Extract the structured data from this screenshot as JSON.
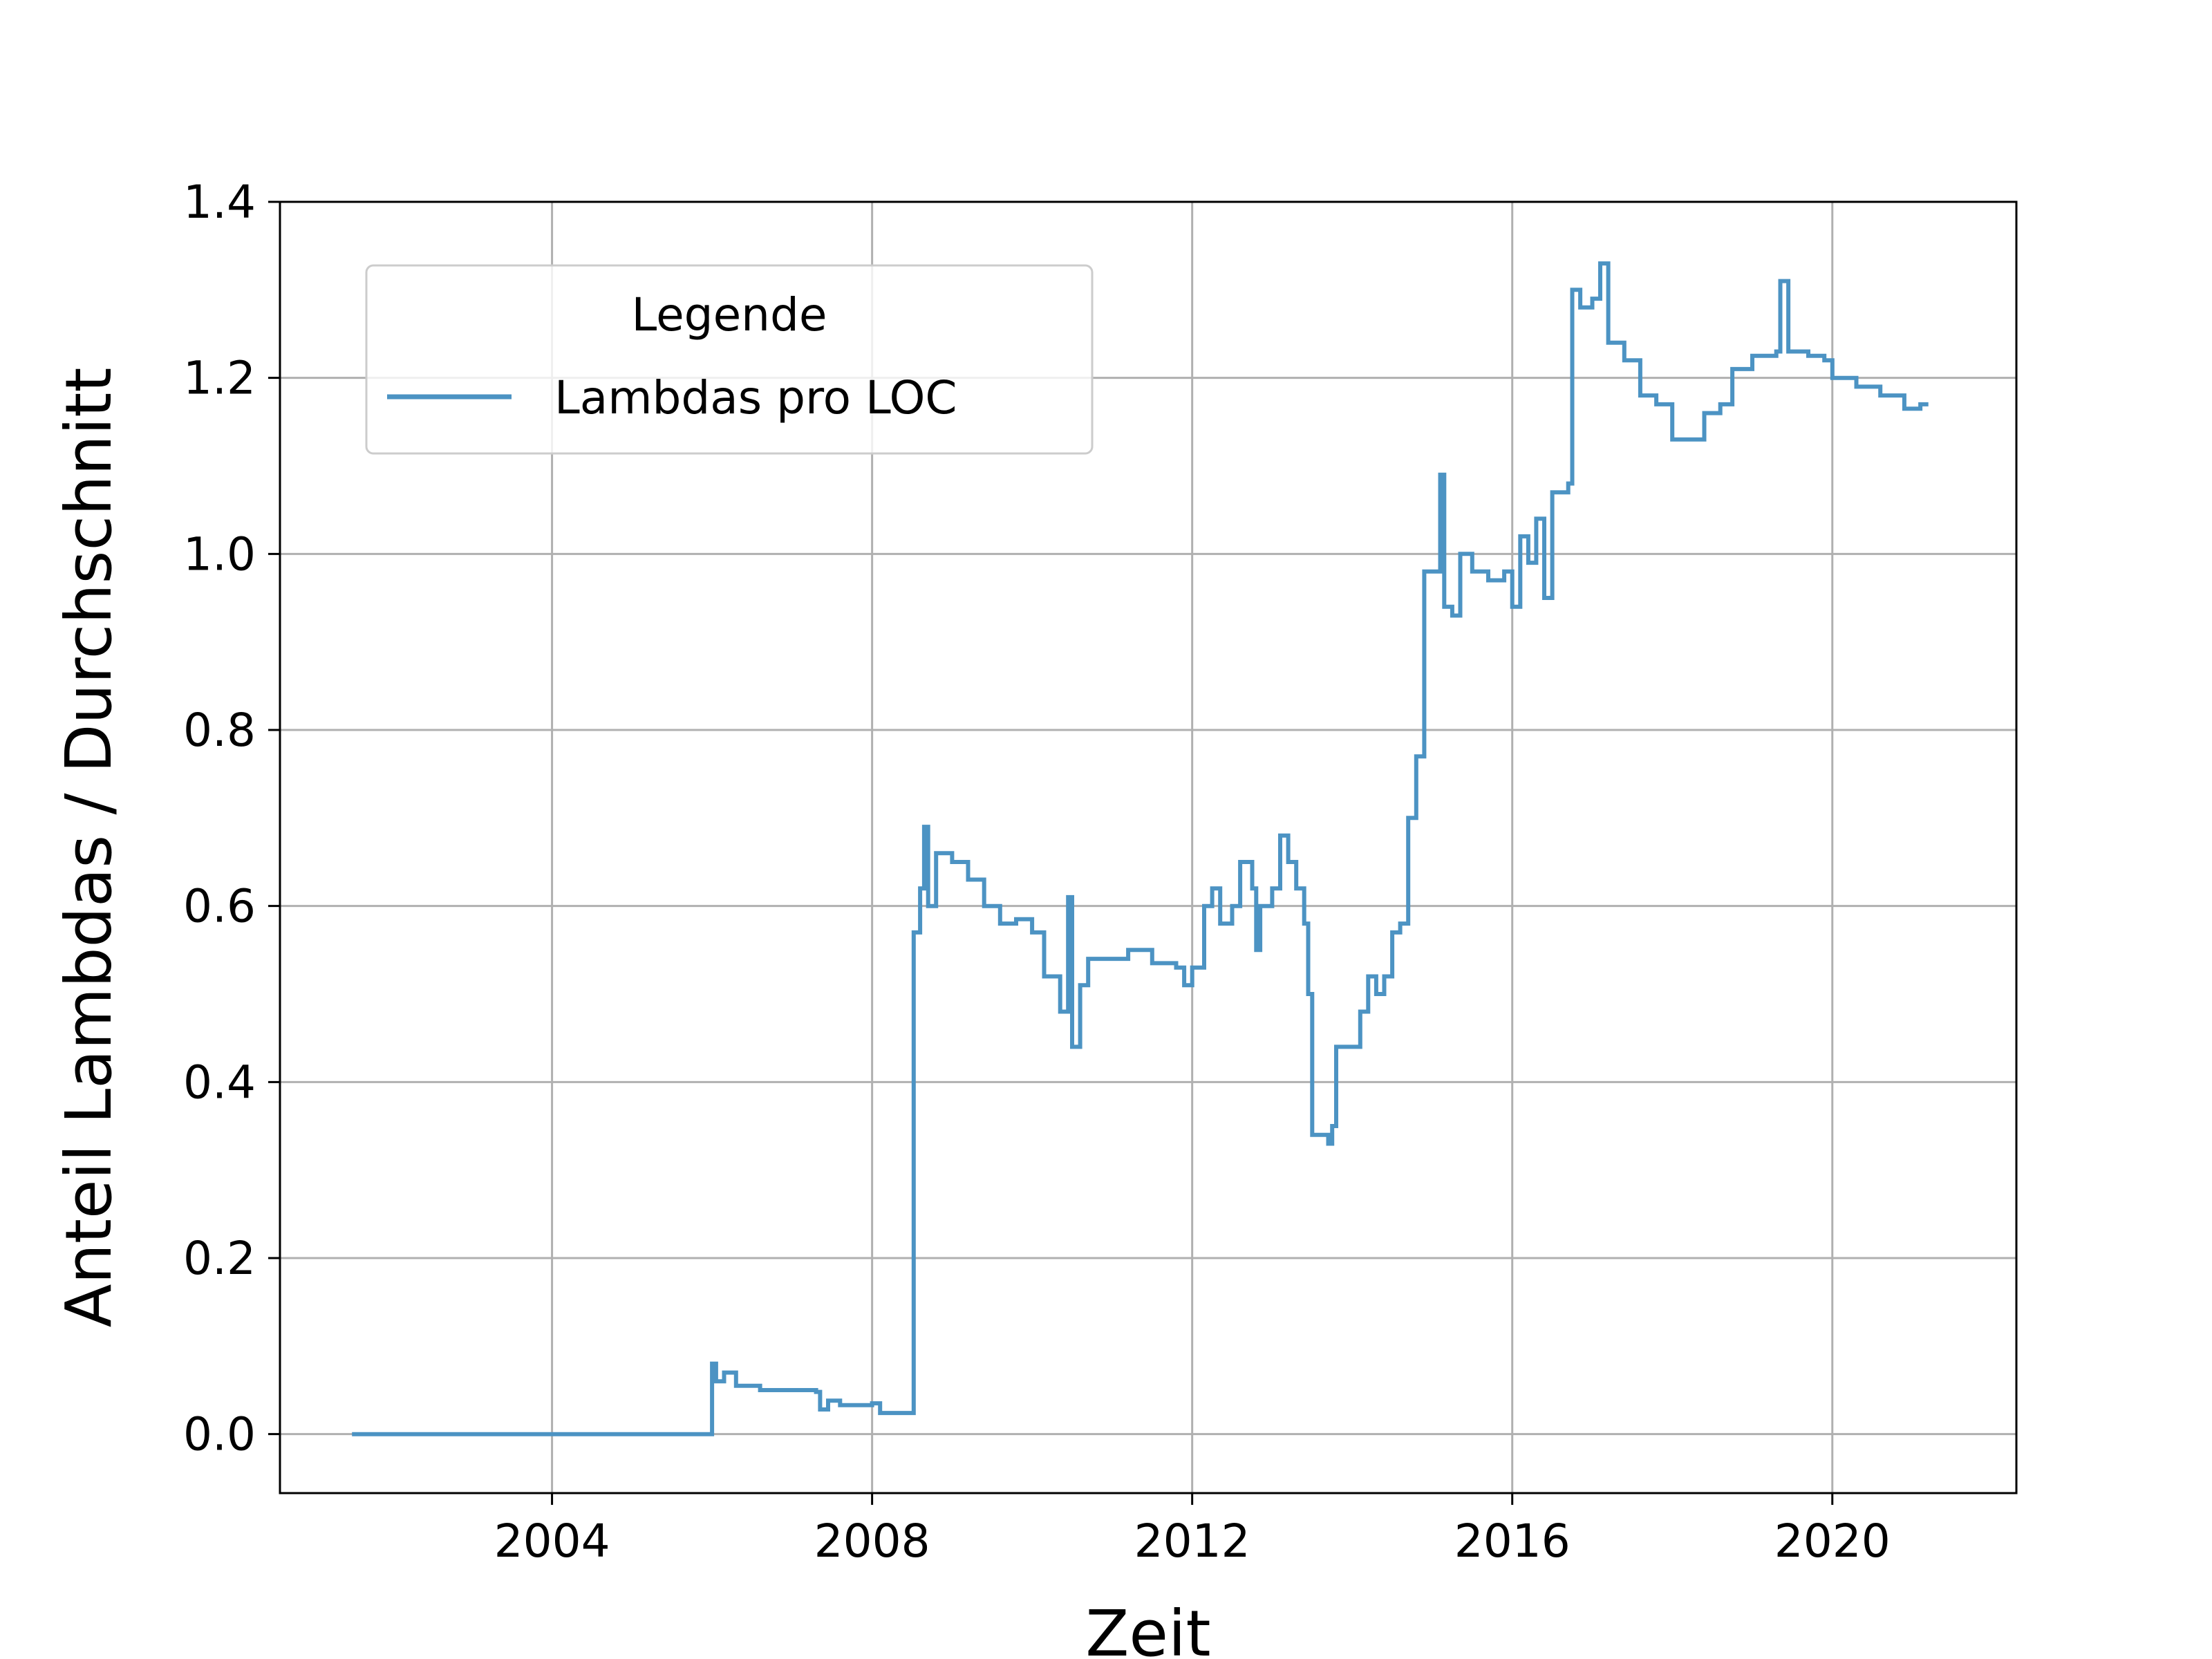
{
  "chart_data": {
    "type": "line",
    "xlabel": "Zeit",
    "ylabel": "Anteil Lambdas / Durchschnitt",
    "x_ticks": [
      "2004",
      "2008",
      "2012",
      "2016",
      "2020"
    ],
    "y_ticks": [
      "0.0",
      "0.2",
      "0.4",
      "0.6",
      "0.8",
      "1.0",
      "1.2",
      "1.4"
    ],
    "xlim": [
      2000.6,
      2022.3
    ],
    "ylim": [
      -0.067,
      1.4
    ],
    "grid": true,
    "legend": {
      "title": "Legende",
      "placement": "upper-left"
    },
    "series": [
      {
        "name": "Lambdas pro LOC",
        "color": "#4c93c3",
        "points": [
          [
            2001.5,
            0.0
          ],
          [
            2005.95,
            0.0
          ],
          [
            2006.0,
            0.08
          ],
          [
            2006.05,
            0.06
          ],
          [
            2006.15,
            0.07
          ],
          [
            2006.3,
            0.055
          ],
          [
            2006.6,
            0.05
          ],
          [
            2007.0,
            0.05
          ],
          [
            2007.3,
            0.048
          ],
          [
            2007.35,
            0.028
          ],
          [
            2007.45,
            0.038
          ],
          [
            2007.6,
            0.033
          ],
          [
            2008.0,
            0.035
          ],
          [
            2008.1,
            0.024
          ],
          [
            2008.5,
            0.024
          ],
          [
            2008.52,
            0.57
          ],
          [
            2008.6,
            0.62
          ],
          [
            2008.65,
            0.69
          ],
          [
            2008.7,
            0.6
          ],
          [
            2008.8,
            0.66
          ],
          [
            2009.0,
            0.65
          ],
          [
            2009.2,
            0.63
          ],
          [
            2009.4,
            0.6
          ],
          [
            2009.6,
            0.58
          ],
          [
            2009.8,
            0.585
          ],
          [
            2010.0,
            0.57
          ],
          [
            2010.15,
            0.52
          ],
          [
            2010.35,
            0.48
          ],
          [
            2010.45,
            0.61
          ],
          [
            2010.5,
            0.44
          ],
          [
            2010.6,
            0.51
          ],
          [
            2010.7,
            0.54
          ],
          [
            2011.0,
            0.54
          ],
          [
            2011.2,
            0.55
          ],
          [
            2011.5,
            0.535
          ],
          [
            2011.8,
            0.53
          ],
          [
            2011.9,
            0.51
          ],
          [
            2012.0,
            0.53
          ],
          [
            2012.15,
            0.6
          ],
          [
            2012.25,
            0.62
          ],
          [
            2012.35,
            0.58
          ],
          [
            2012.5,
            0.6
          ],
          [
            2012.6,
            0.65
          ],
          [
            2012.75,
            0.62
          ],
          [
            2012.8,
            0.55
          ],
          [
            2012.85,
            0.6
          ],
          [
            2013.0,
            0.62
          ],
          [
            2013.1,
            0.68
          ],
          [
            2013.2,
            0.65
          ],
          [
            2013.3,
            0.62
          ],
          [
            2013.4,
            0.58
          ],
          [
            2013.45,
            0.5
          ],
          [
            2013.5,
            0.34
          ],
          [
            2013.6,
            0.34
          ],
          [
            2013.7,
            0.33
          ],
          [
            2013.75,
            0.35
          ],
          [
            2013.8,
            0.44
          ],
          [
            2013.95,
            0.44
          ],
          [
            2014.1,
            0.48
          ],
          [
            2014.2,
            0.52
          ],
          [
            2014.3,
            0.5
          ],
          [
            2014.4,
            0.52
          ],
          [
            2014.5,
            0.57
          ],
          [
            2014.6,
            0.58
          ],
          [
            2014.7,
            0.7
          ],
          [
            2014.8,
            0.77
          ],
          [
            2014.9,
            0.98
          ],
          [
            2015.05,
            0.98
          ],
          [
            2015.1,
            1.09
          ],
          [
            2015.15,
            0.94
          ],
          [
            2015.25,
            0.93
          ],
          [
            2015.35,
            1.0
          ],
          [
            2015.5,
            0.98
          ],
          [
            2015.7,
            0.97
          ],
          [
            2015.9,
            0.98
          ],
          [
            2016.0,
            0.94
          ],
          [
            2016.1,
            1.02
          ],
          [
            2016.2,
            0.99
          ],
          [
            2016.3,
            1.04
          ],
          [
            2016.4,
            0.95
          ],
          [
            2016.5,
            1.07
          ],
          [
            2016.7,
            1.08
          ],
          [
            2016.75,
            1.3
          ],
          [
            2016.85,
            1.28
          ],
          [
            2017.0,
            1.29
          ],
          [
            2017.1,
            1.33
          ],
          [
            2017.2,
            1.24
          ],
          [
            2017.4,
            1.22
          ],
          [
            2017.6,
            1.18
          ],
          [
            2017.8,
            1.17
          ],
          [
            2018.0,
            1.13
          ],
          [
            2018.2,
            1.13
          ],
          [
            2018.4,
            1.16
          ],
          [
            2018.6,
            1.17
          ],
          [
            2018.75,
            1.21
          ],
          [
            2019.0,
            1.225
          ],
          [
            2019.3,
            1.23
          ],
          [
            2019.35,
            1.31
          ],
          [
            2019.45,
            1.23
          ],
          [
            2019.7,
            1.225
          ],
          [
            2019.9,
            1.22
          ],
          [
            2020.0,
            1.2
          ],
          [
            2020.3,
            1.19
          ],
          [
            2020.6,
            1.18
          ],
          [
            2020.9,
            1.165
          ],
          [
            2021.1,
            1.17
          ],
          [
            2021.2,
            1.17
          ]
        ]
      }
    ]
  }
}
